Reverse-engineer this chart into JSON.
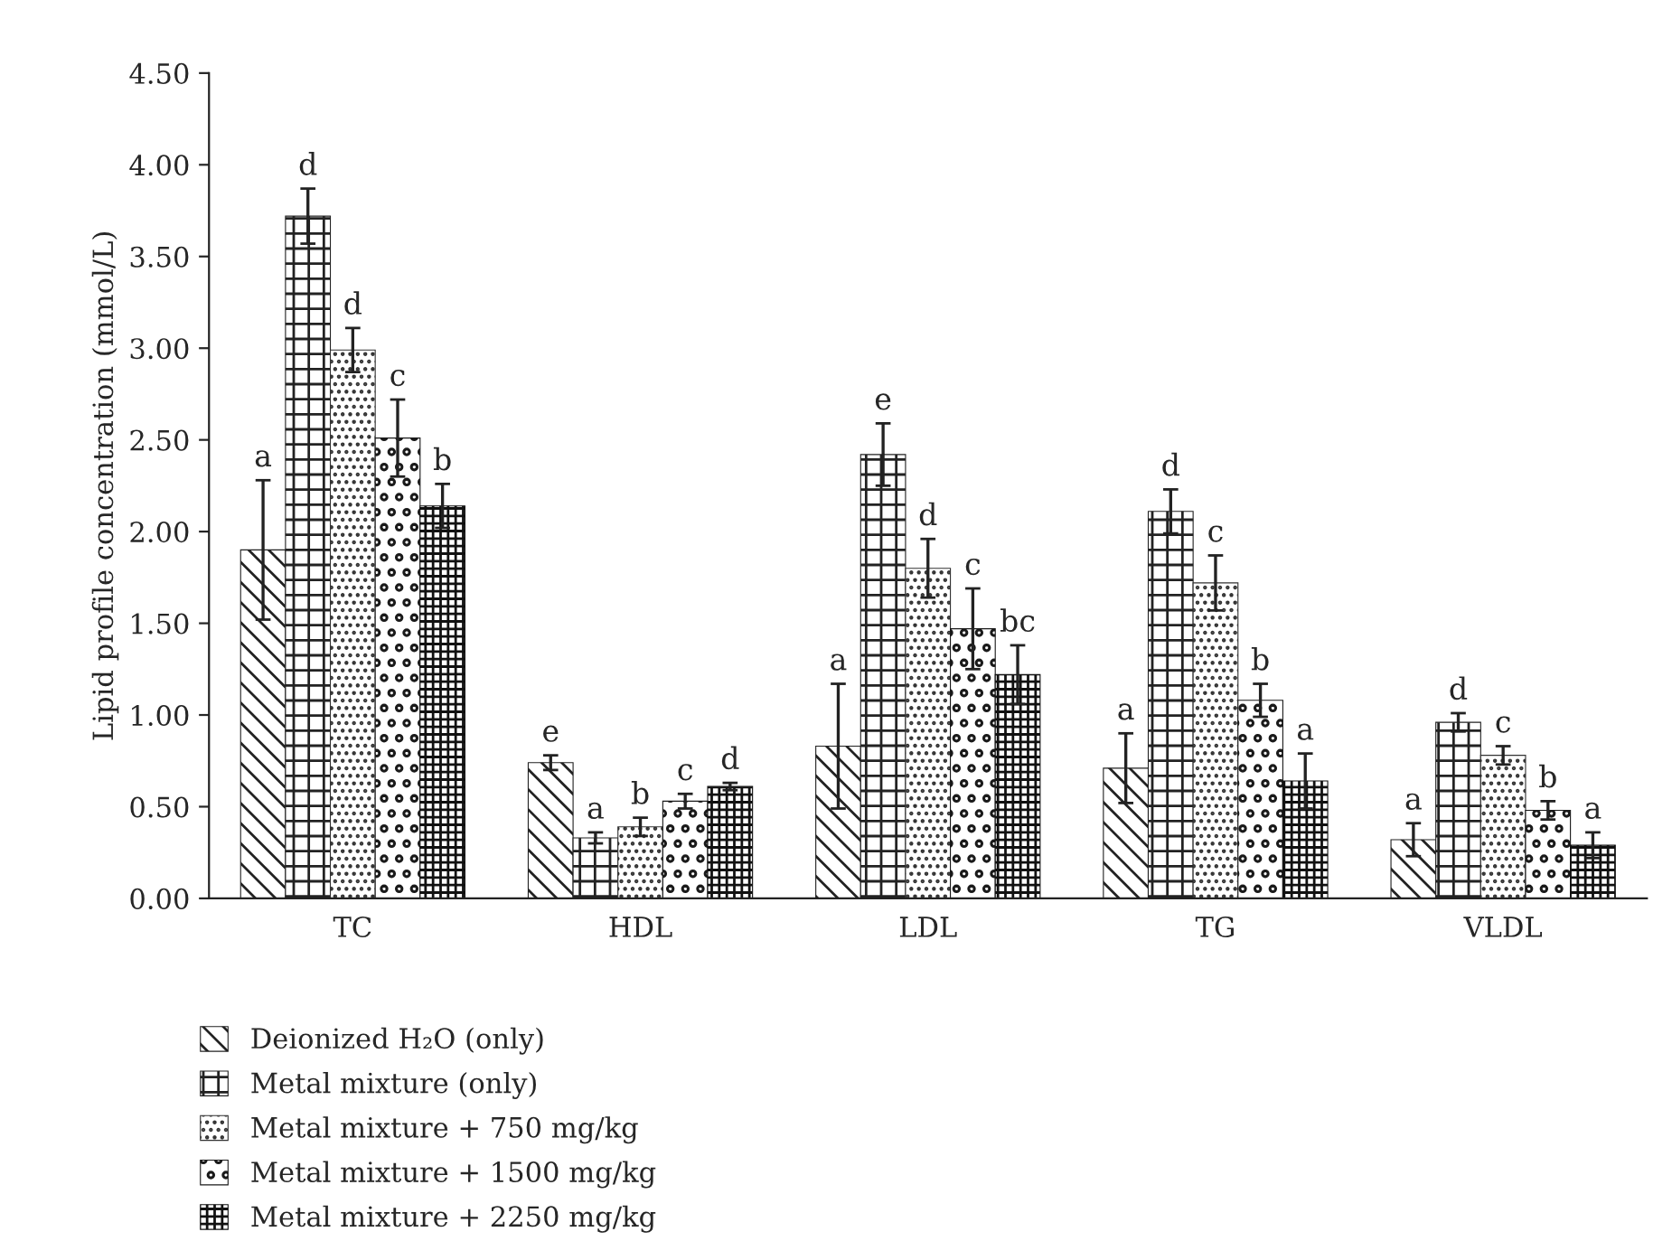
{
  "chart_data": {
    "type": "bar",
    "ylabel": "Lipid profile concentration (mmol/L)",
    "categories": [
      "TC",
      "HDL",
      "LDL",
      "TG",
      "VLDL"
    ],
    "ylim": [
      0,
      4.5
    ],
    "yticks": [
      {
        "value": 0,
        "label": "0.00"
      },
      {
        "value": 0.5,
        "label": "0.50"
      },
      {
        "value": 1,
        "label": "1.00"
      },
      {
        "value": 1.5,
        "label": "1.50"
      },
      {
        "value": 2,
        "label": "2.00"
      },
      {
        "value": 2.5,
        "label": "2.50"
      },
      {
        "value": 3,
        "label": "3.00"
      },
      {
        "value": 3.5,
        "label": "3.50"
      },
      {
        "value": 4,
        "label": "4.00"
      },
      {
        "value": 4.5,
        "label": "4.50"
      }
    ],
    "grid": false,
    "legend": "bottom",
    "series": [
      {
        "name": "Deionized H₂O (only)",
        "color": "#222222",
        "values": [
          1.9,
          0.74,
          0.83,
          0.71,
          0.32
        ],
        "errors": [
          0.38,
          0.04,
          0.34,
          0.19,
          0.09
        ],
        "value_labels": [
          "a",
          "e",
          "a",
          "a",
          "a"
        ]
      },
      {
        "name": "Metal mixture (only)",
        "color": "#222222",
        "values": [
          3.72,
          0.33,
          2.42,
          2.11,
          0.96
        ],
        "errors": [
          0.15,
          0.03,
          0.17,
          0.12,
          0.05
        ],
        "value_labels": [
          "d",
          "a",
          "e",
          "d",
          "d"
        ]
      },
      {
        "name": "Metal mixture + 750 mg/kg",
        "color": "#333333",
        "values": [
          2.99,
          0.39,
          1.8,
          1.72,
          0.78
        ],
        "errors": [
          0.12,
          0.05,
          0.16,
          0.15,
          0.05
        ],
        "value_labels": [
          "d",
          "b",
          "d",
          "c",
          "c"
        ]
      },
      {
        "name": "Metal mixture + 1500 mg/kg",
        "color": "#1a1a1a",
        "values": [
          2.51,
          0.53,
          1.47,
          1.08,
          0.48
        ],
        "errors": [
          0.21,
          0.04,
          0.22,
          0.09,
          0.05
        ],
        "value_labels": [
          "c",
          "c",
          "c",
          "b",
          "b"
        ]
      },
      {
        "name": "Metal mixture + 2250 mg/kg",
        "color": "#111111",
        "values": [
          2.14,
          0.61,
          1.22,
          0.64,
          0.29
        ],
        "errors": [
          0.12,
          0.02,
          0.16,
          0.15,
          0.07
        ],
        "value_labels": [
          "b",
          "d",
          "bc",
          "a",
          "a"
        ]
      }
    ]
  }
}
